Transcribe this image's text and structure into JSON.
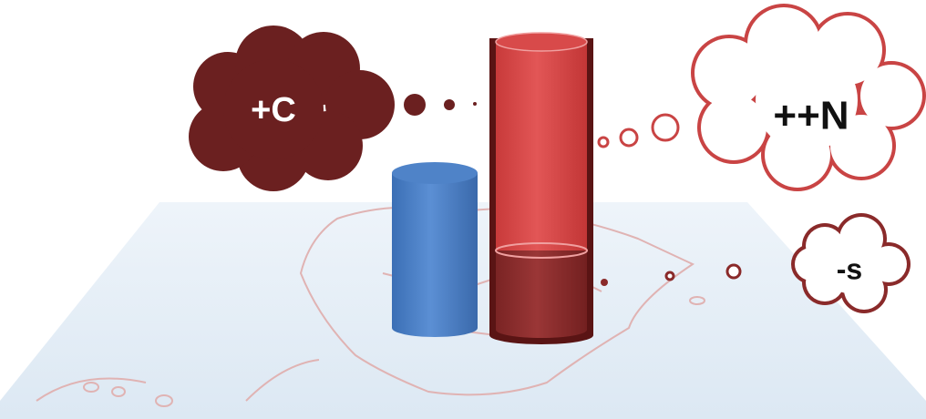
{
  "callouts": [
    {
      "label": "+C"
    },
    {
      "label": "++N"
    },
    {
      "label": "-s"
    }
  ]
}
